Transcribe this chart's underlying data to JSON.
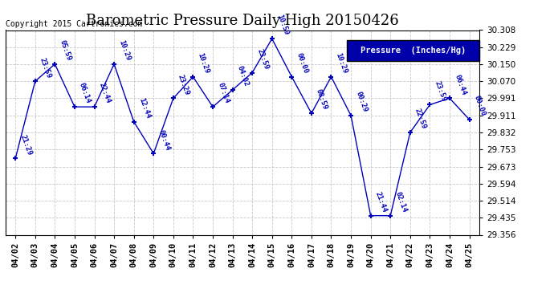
{
  "title": "Barometric Pressure Daily High 20150426",
  "copyright": "Copyright 2015 Cartronics.com",
  "legend_label": "Pressure  (Inches/Hg)",
  "dates": [
    "04/02",
    "04/03",
    "04/04",
    "04/05",
    "04/06",
    "04/07",
    "04/08",
    "04/09",
    "04/10",
    "04/11",
    "04/12",
    "04/13",
    "04/14",
    "04/15",
    "04/16",
    "04/17",
    "04/18",
    "04/19",
    "04/20",
    "04/21",
    "04/22",
    "04/23",
    "04/24",
    "04/25"
  ],
  "values": [
    29.711,
    30.07,
    30.15,
    29.951,
    29.951,
    30.15,
    29.882,
    29.734,
    29.991,
    30.091,
    29.951,
    30.03,
    30.11,
    30.268,
    30.091,
    29.921,
    30.091,
    29.911,
    29.445,
    29.445,
    29.832,
    29.961,
    29.991,
    29.892
  ],
  "time_labels": [
    "21:29",
    "23:59",
    "05:59",
    "06:14",
    "22:44",
    "10:29",
    "12:44",
    "00:44",
    "23:29",
    "10:29",
    "07:14",
    "04:02",
    "23:59",
    "10:59",
    "00:00",
    "08:59",
    "10:29",
    "00:29",
    "21:44",
    "02:14",
    "22:59",
    "23:59",
    "06:44",
    "00:00"
  ],
  "ylim_min": 29.356,
  "ylim_max": 30.308,
  "yticks": [
    29.356,
    29.435,
    29.514,
    29.594,
    29.673,
    29.753,
    29.832,
    29.911,
    29.991,
    30.07,
    30.15,
    30.229,
    30.308
  ],
  "line_color": "#0000bb",
  "background_color": "#ffffff",
  "grid_color": "#bbbbbb",
  "title_fontsize": 13,
  "tick_fontsize": 7.5,
  "legend_bg": "#0000aa",
  "legend_fg": "#ffffff"
}
